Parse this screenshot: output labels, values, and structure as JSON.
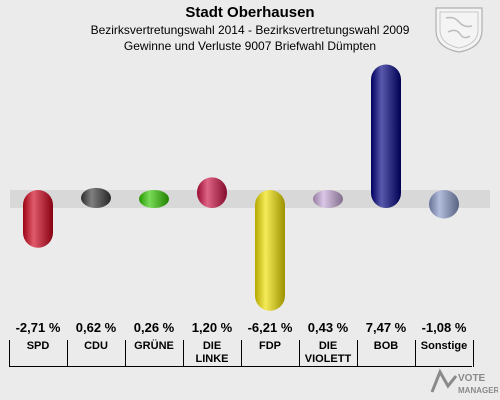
{
  "header": {
    "title": "Stadt Oberhausen",
    "subtitle1": "Bezirksvertretungswahl 2014 - Bezirksvertretungswahl 2009",
    "subtitle2": "Gewinne und Verluste 9007 Briefwahl Dümpten"
  },
  "watermark": {
    "text": "VOTE MANAGER"
  },
  "chart_data": {
    "type": "bar",
    "title": "Stadt Oberhausen",
    "categories": [
      "SPD",
      "CDU",
      "GRÜNE",
      "DIE LINKE",
      "FDP",
      "DIE VIOLETTEN",
      "BOB",
      "Sonstige"
    ],
    "category_lines": [
      [
        "SPD"
      ],
      [
        "CDU"
      ],
      [
        "GRÜNE"
      ],
      [
        "DIE",
        "LINKE"
      ],
      [
        "FDP"
      ],
      [
        "DIE",
        "VIOLETT"
      ],
      [
        "BOB"
      ],
      [
        "Sonstige"
      ]
    ],
    "values": [
      -2.71,
      0.62,
      0.26,
      1.2,
      -6.21,
      0.43,
      7.47,
      -1.08
    ],
    "value_labels": [
      "-2,71 %",
      "0,62 %",
      "0,26 %",
      "1,20 %",
      "-6,21 %",
      "0,43 %",
      "7,47 %",
      "-1,08 %"
    ],
    "colors": [
      "#d0021b",
      "#3c3c3c",
      "#32c800",
      "#cc1144",
      "#f0e000",
      "#c8a8d8",
      "#000080",
      "#8898c8"
    ],
    "xlabel": "",
    "ylabel": "",
    "ylim": [
      -7.5,
      8
    ],
    "grid": false
  }
}
